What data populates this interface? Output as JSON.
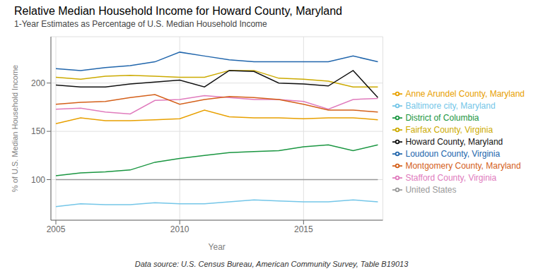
{
  "chart_data": {
    "type": "line",
    "title": "Relative Median Household Income for Howard County, Maryland",
    "subtitle": "1-Year Estimates as Percentage of U.S. Median Household Income",
    "x_label": "Year",
    "y_label": "% of U.S. Median Household Income",
    "footnote": "Data source: U.S. Census Bureau, American Community Survey, Table B19013",
    "x": [
      2005,
      2006,
      2007,
      2008,
      2009,
      2010,
      2011,
      2012,
      2013,
      2014,
      2015,
      2016,
      2017,
      2018
    ],
    "series": [
      {
        "name": "Loudoun County, Virginia",
        "color": "#2166ac",
        "values": [
          215,
          213,
          216,
          218,
          222,
          232,
          228,
          224,
          222,
          222,
          222,
          222,
          228,
          222
        ]
      },
      {
        "name": "Fairfax County, Virginia",
        "color": "#ccaa00",
        "values": [
          206,
          204,
          207,
          208,
          207,
          206,
          206,
          213,
          213,
          205,
          204,
          202,
          196,
          196
        ]
      },
      {
        "name": "Stafford County, Virginia",
        "color": "#e07bbd",
        "values": [
          173,
          174,
          170,
          168,
          182,
          183,
          187,
          185,
          183,
          183,
          181,
          173,
          183,
          184
        ]
      },
      {
        "name": "Howard County, Maryland",
        "color": "#111111",
        "values": [
          198,
          196,
          196,
          199,
          201,
          203,
          196,
          213,
          212,
          200,
          199,
          197,
          213,
          185
        ]
      },
      {
        "name": "Montgomery County, Maryland",
        "color": "#d4601a",
        "values": [
          178,
          180,
          181,
          185,
          188,
          178,
          183,
          186,
          185,
          183,
          178,
          172,
          172,
          170
        ]
      },
      {
        "name": "Anne Arundel County, Maryland",
        "color": "#e8a000",
        "values": [
          158,
          164,
          161,
          161,
          162,
          163,
          172,
          165,
          164,
          164,
          163,
          164,
          164,
          162
        ]
      },
      {
        "name": "District of Columbia",
        "color": "#1a9641",
        "values": [
          104,
          107,
          108,
          110,
          118,
          122,
          125,
          128,
          129,
          130,
          134,
          136,
          130,
          136
        ]
      },
      {
        "name": "United States",
        "color": "#999999",
        "values": [
          100,
          100,
          100,
          100,
          100,
          100,
          100,
          100,
          100,
          100,
          100,
          100,
          100,
          100
        ]
      },
      {
        "name": "Baltimore city, Maryland",
        "color": "#74c6e8",
        "values": [
          72,
          75,
          74,
          74,
          76,
          75,
          75,
          77,
          79,
          78,
          77,
          77,
          79,
          77
        ]
      }
    ],
    "xlim": [
      2004.8,
      2018.2
    ],
    "xticks": [
      2005,
      2010,
      2015
    ],
    "ylim": [
      58,
      248
    ],
    "yticks": [
      100,
      150,
      200
    ],
    "grid": true,
    "legend": "right"
  }
}
